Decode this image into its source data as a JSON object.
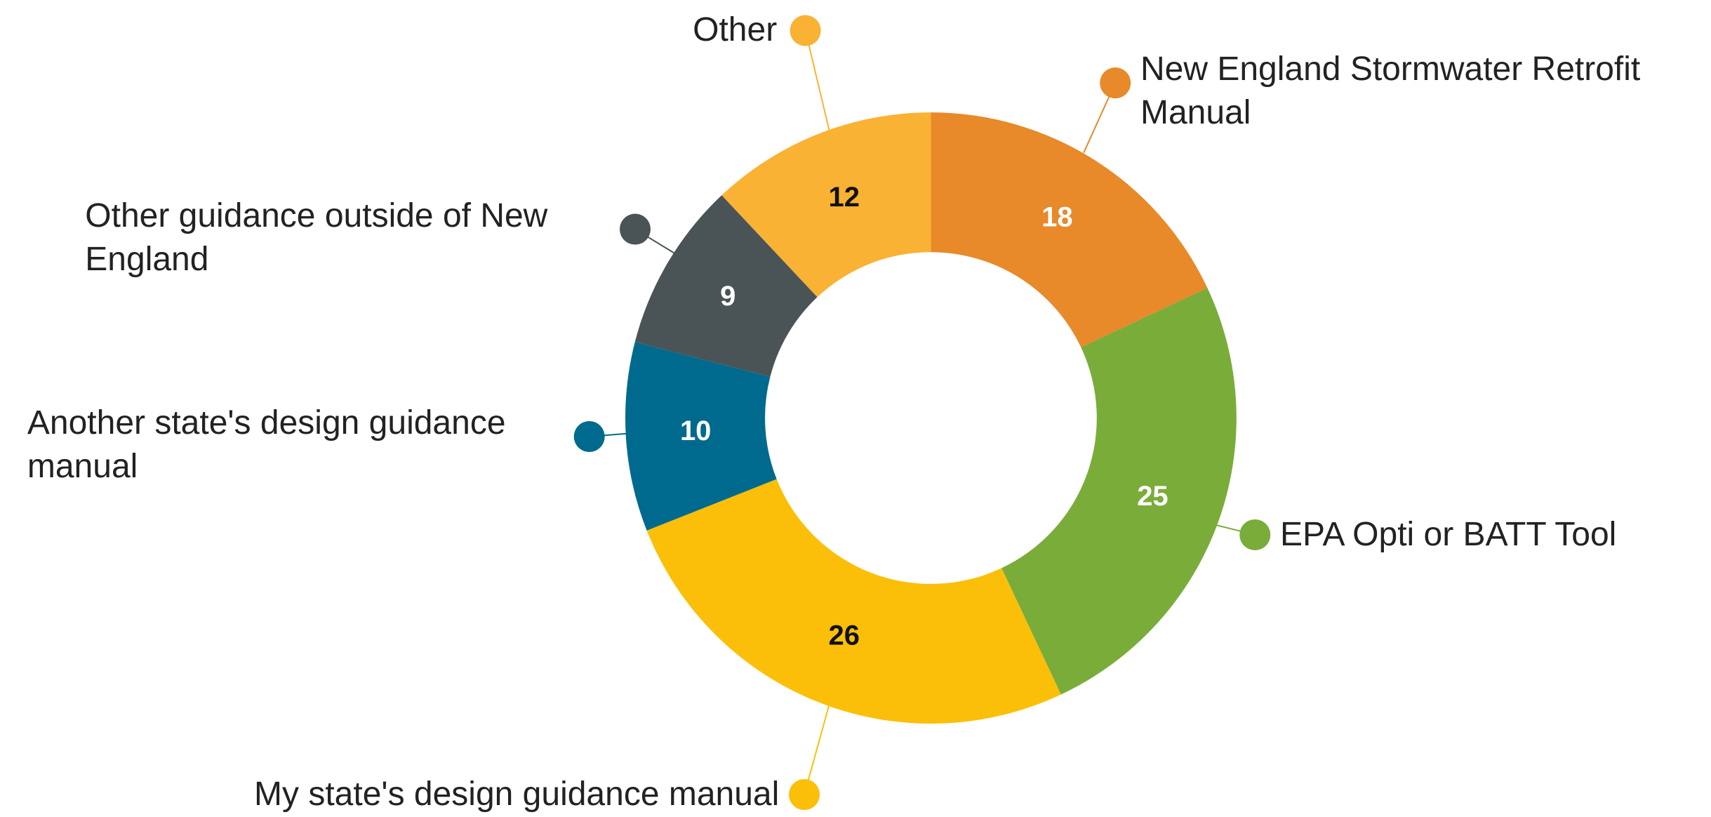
{
  "chart_data": {
    "type": "pie",
    "categories": [
      "New England Stormwater Retrofit Manual",
      "EPA Opti or BATT Tool",
      "My state's design guidance manual",
      "Another state's design guidance manual",
      "Other guidance outside of New England",
      "Other"
    ],
    "values": [
      18,
      25,
      26,
      10,
      9,
      12
    ],
    "colors": [
      "#e8892a",
      "#7aac3a",
      "#fbbf0a",
      "#006a8e",
      "#4a5456",
      "#f9b233"
    ],
    "value_label_colors": [
      "#ffffff",
      "#ffffff",
      "#111111",
      "#ffffff",
      "#ffffff",
      "#111111"
    ]
  }
}
